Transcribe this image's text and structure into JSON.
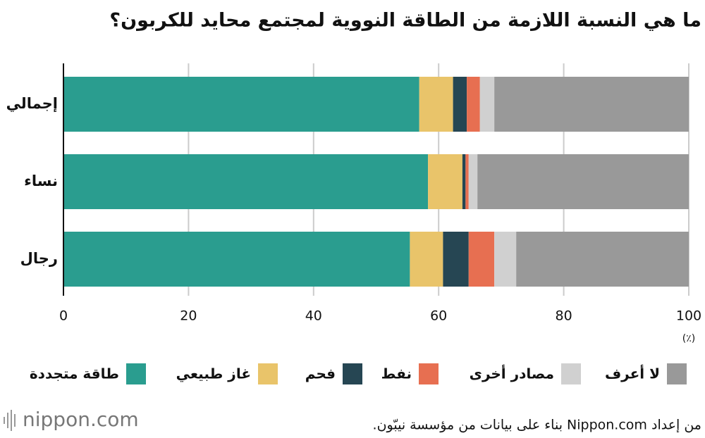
{
  "chart_data": {
    "type": "stacked-bar-horizontal",
    "title": "ما هي النسبة اللازمة من الطاقة النووية لمجتمع محايد للكربون؟",
    "categories": [
      "إجمالي",
      "نساء",
      "رجال"
    ],
    "series": [
      {
        "name": "طاقة متجددة",
        "color": "#2a9d8f",
        "values": [
          56.9,
          58.3,
          55.4
        ]
      },
      {
        "name": "غاز طبيعي",
        "color": "#e9c46a",
        "values": [
          5.4,
          5.5,
          5.3
        ]
      },
      {
        "name": "فحم",
        "color": "#264653",
        "values": [
          2.2,
          0.5,
          4.1
        ]
      },
      {
        "name": "نفط",
        "color": "#e76f51",
        "values": [
          2.1,
          0.5,
          4.1
        ]
      },
      {
        "name": "مصادر أخرى",
        "color": "#d0d0d0",
        "values": [
          2.3,
          1.4,
          3.5
        ]
      },
      {
        "name": "لا أعرف",
        "color": "#999999",
        "values": [
          31.1,
          33.8,
          27.6
        ]
      }
    ],
    "xlim": [
      0,
      100
    ],
    "xticks": [
      0,
      20,
      40,
      60,
      80,
      100
    ],
    "x_unit": "(٪)",
    "grid": true,
    "source": "من إعداد Nippon.com بناء على بيانات من مؤسسة نيبّون.",
    "brand": "nippon.com"
  }
}
